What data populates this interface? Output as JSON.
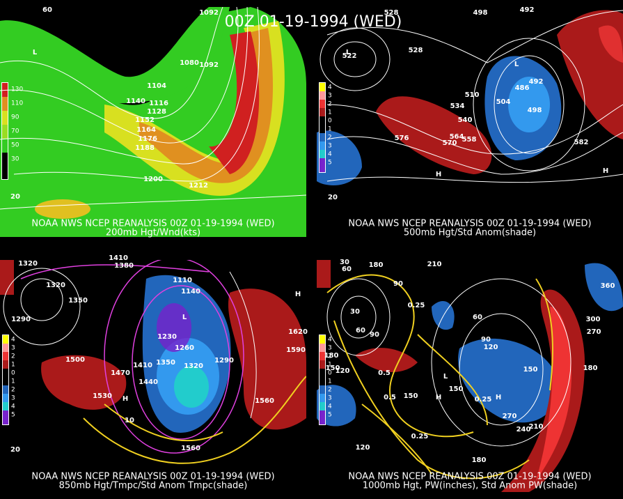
{
  "title": "00Z 01-19-1994 (WED)",
  "panels": [
    {
      "caption": "NOAA NWS NCEP REANALYSIS 00Z 01-19-1994 (WED)",
      "subtitle": "200mb Hgt/Wnd(kts)",
      "legend": [
        "130",
        "110",
        "90",
        "70",
        "50",
        "30"
      ],
      "labels": [
        "60",
        "1092",
        "L",
        "1080",
        "1092",
        "1104",
        "1140",
        "1116",
        "1128",
        "1152",
        "1164",
        "1176",
        "1188",
        "1200",
        "1212",
        "20"
      ]
    },
    {
      "caption": "NOAA NWS NCEP REANALYSIS 00Z 01-19-1994 (WED)",
      "subtitle": "500mb Hgt/Std Anom(shade)",
      "legend": [
        "4",
        "3",
        "2",
        "1",
        "0",
        "1",
        "2",
        "3",
        "4",
        "5"
      ],
      "labels": [
        "528",
        "498",
        "492",
        "L",
        "522",
        "528",
        "L",
        "486",
        "492",
        "498",
        "504",
        "510",
        "534",
        "540",
        "576",
        "570",
        "564",
        "558",
        "582",
        "H",
        "H",
        "20"
      ]
    },
    {
      "caption": "NOAA NWS NCEP REANALYSIS 00Z 01-19-1994 (WED)",
      "subtitle": "850mb Hgt/Tmpc/Std Anom Tmpc(shade)",
      "legend": [
        "4",
        "3",
        "2",
        "1",
        "0",
        "1",
        "2",
        "3",
        "4",
        "5"
      ],
      "labels": [
        "1320",
        "1410",
        "1380",
        "1320",
        "1350",
        "1110",
        "1140",
        "L",
        "1290",
        "1230",
        "1260",
        "1290",
        "1350",
        "1320",
        "1410",
        "1440",
        "1470",
        "1500",
        "1530",
        "1620",
        "1590",
        "1560",
        "1560",
        "10",
        "H",
        "H",
        "20"
      ]
    },
    {
      "caption": "NOAA NWS NCEP REANALYSIS 00Z 01-19-1994 (WED)",
      "subtitle": "1000mb Hgt, PW(inches), Std Anom PW(shade)",
      "legend": [
        "4",
        "3",
        "2",
        "1",
        "0",
        "1",
        "2",
        "3",
        "4",
        "5"
      ],
      "labels": [
        "30",
        "60",
        "180",
        "210",
        "90",
        "0.25",
        "30",
        "60",
        "90",
        "60",
        "90",
        "120",
        "150",
        "180",
        "150",
        "120",
        "0.5",
        "0.5",
        "150",
        "150",
        "0.25",
        "0.25",
        "270",
        "240",
        "210",
        "120",
        "180",
        "300",
        "270",
        "180",
        "360",
        "L",
        "H",
        "H"
      ]
    }
  ]
}
